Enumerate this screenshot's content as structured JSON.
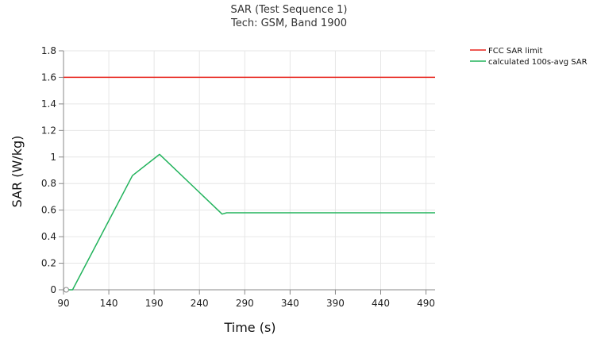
{
  "chart_data": {
    "type": "line",
    "title": "SAR (Test Sequence 1)",
    "subtitle": "Tech: GSM, Band 1900",
    "xlabel": "Time (s)",
    "ylabel": "SAR (W/kg)",
    "xlim": [
      90,
      500
    ],
    "ylim": [
      0,
      1.8
    ],
    "xticks": [
      90,
      140,
      190,
      240,
      290,
      340,
      390,
      440,
      490
    ],
    "yticks": [
      0,
      0.2,
      0.4,
      0.6,
      0.8,
      1,
      1.2,
      1.4,
      1.6,
      1.8
    ],
    "grid": true,
    "legend_position": "top-right",
    "series": [
      {
        "name": "FCC SAR limit",
        "color": "#e8231c",
        "x": [
          90,
          500
        ],
        "y": [
          1.6,
          1.6
        ]
      },
      {
        "name": "calculated 100s-avg SAR",
        "color": "#22b35c",
        "x": [
          93,
          100,
          166,
          196,
          265,
          270,
          500
        ],
        "y": [
          0.0,
          0.0,
          0.86,
          1.02,
          0.57,
          0.58,
          0.58
        ]
      }
    ]
  }
}
